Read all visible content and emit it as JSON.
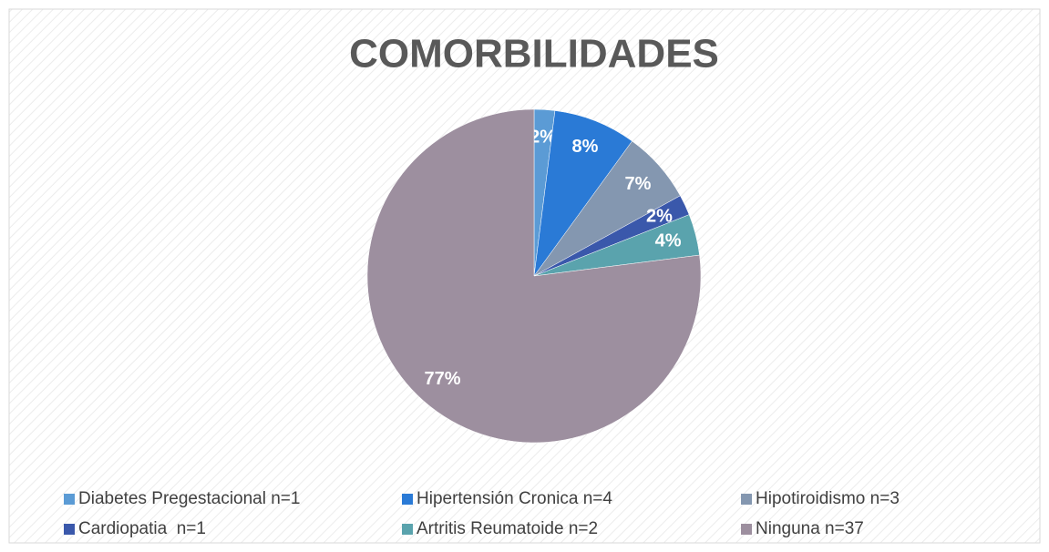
{
  "chart_data": {
    "type": "pie",
    "title": "COMORBILIDADES",
    "categories": [
      "Diabetes Pregestacional n=1",
      "Hipertensión Cronica n=4",
      "Hipotiroidismo n=3",
      "Cardiopatia  n=1",
      "Artritis Reumatoide n=2",
      "Ninguna n=37"
    ],
    "values": [
      2,
      8,
      7,
      2,
      4,
      77
    ],
    "value_labels": [
      "2%",
      "8%",
      "7%",
      "2%",
      "4%",
      "77%"
    ],
    "colors": [
      "#5b9bd5",
      "#2a7ad6",
      "#8497b0",
      "#3a58ab",
      "#5aa3ad",
      "#9d8f9f"
    ],
    "legend": "bottom"
  }
}
